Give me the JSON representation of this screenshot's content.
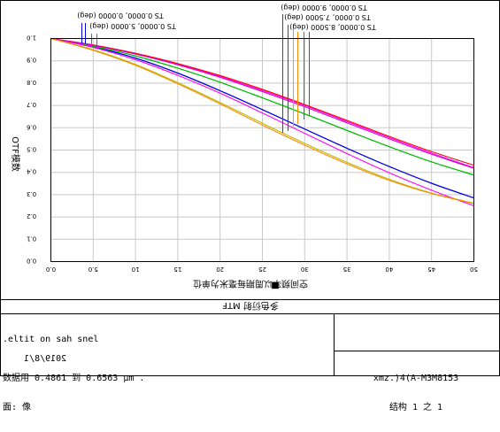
{
  "chart_data": {
    "type": "line",
    "x": [
      0,
      5,
      10,
      15,
      20,
      25,
      30,
      35,
      40,
      45,
      50
    ],
    "x_ticks": [
      "0.0",
      "5.0",
      "10",
      "15",
      "20",
      "25",
      "30",
      "35",
      "40",
      "45",
      "50"
    ],
    "xlim": [
      0,
      50
    ],
    "y_ticks": [
      "0.0",
      "0.1",
      "0.2",
      "0.3",
      "0.4",
      "0.5",
      "0.6",
      "0.7",
      "0.8",
      "0.9",
      "1.0"
    ],
    "ylim": [
      0,
      1
    ],
    "xlabel": "空间频率以周期每毫米为单位",
    "xlabel_icon": "■",
    "ylabel": "OTF模数",
    "legend": [
      "TS 0.0000, 0.0000 (deg)",
      "TS 0.0000, 5.0000 (deg)",
      "TS 0.0000, 9.0000 (deg)",
      "TS 0.0000, 7.5000 (deg)",
      "TS 0.0000, 8.5000 (deg)"
    ],
    "series": [
      {
        "color": "#0000ee",
        "values": [
          1.0,
          0.962,
          0.912,
          0.845,
          0.766,
          0.681,
          0.594,
          0.508,
          0.426,
          0.351,
          0.285
        ]
      },
      {
        "color": "#0000ee",
        "values": [
          1.0,
          0.962,
          0.912,
          0.845,
          0.766,
          0.681,
          0.594,
          0.508,
          0.426,
          0.351,
          0.285
        ]
      },
      {
        "color": "#00bb00",
        "values": [
          1.0,
          0.965,
          0.922,
          0.867,
          0.804,
          0.734,
          0.662,
          0.588,
          0.515,
          0.447,
          0.388
        ]
      },
      {
        "color": "#00bb00",
        "values": [
          1.0,
          0.965,
          0.922,
          0.867,
          0.804,
          0.734,
          0.662,
          0.588,
          0.515,
          0.447,
          0.388
        ]
      },
      {
        "color": "#ff00ff",
        "values": [
          1.0,
          0.97,
          0.932,
          0.885,
          0.83,
          0.767,
          0.7,
          0.628,
          0.556,
          0.486,
          0.421
        ]
      },
      {
        "color": "#ff00ff",
        "values": [
          1.0,
          0.96,
          0.905,
          0.835,
          0.755,
          0.666,
          0.575,
          0.484,
          0.398,
          0.32,
          0.25
        ]
      },
      {
        "color": "#ff0000",
        "values": [
          1.0,
          0.971,
          0.934,
          0.888,
          0.834,
          0.772,
          0.704,
          0.633,
          0.561,
          0.493,
          0.432
        ]
      },
      {
        "color": "#d000d0",
        "values": [
          1.0,
          0.969,
          0.93,
          0.882,
          0.826,
          0.762,
          0.694,
          0.622,
          0.55,
          0.481,
          0.418
        ]
      },
      {
        "color": "#bbbb00",
        "values": [
          1.0,
          0.95,
          0.884,
          0.802,
          0.713,
          0.62,
          0.53,
          0.445,
          0.369,
          0.307,
          0.262
        ]
      },
      {
        "color": "#ff8800",
        "values": [
          1.0,
          0.947,
          0.88,
          0.797,
          0.707,
          0.612,
          0.522,
          0.438,
          0.364,
          0.305,
          0.26
        ]
      }
    ]
  },
  "bottom_panel": {
    "title": "多色衍射 MTF",
    "info_lines": [
      ".eltit on sah snel",
      "2019/8/1",
      "数据用 0.4861 到 0.6563 μm .",
      "面: 像"
    ],
    "file_lines": [
      "xmz.)4(A-M3M8153",
      "结构 1 之 1"
    ]
  }
}
